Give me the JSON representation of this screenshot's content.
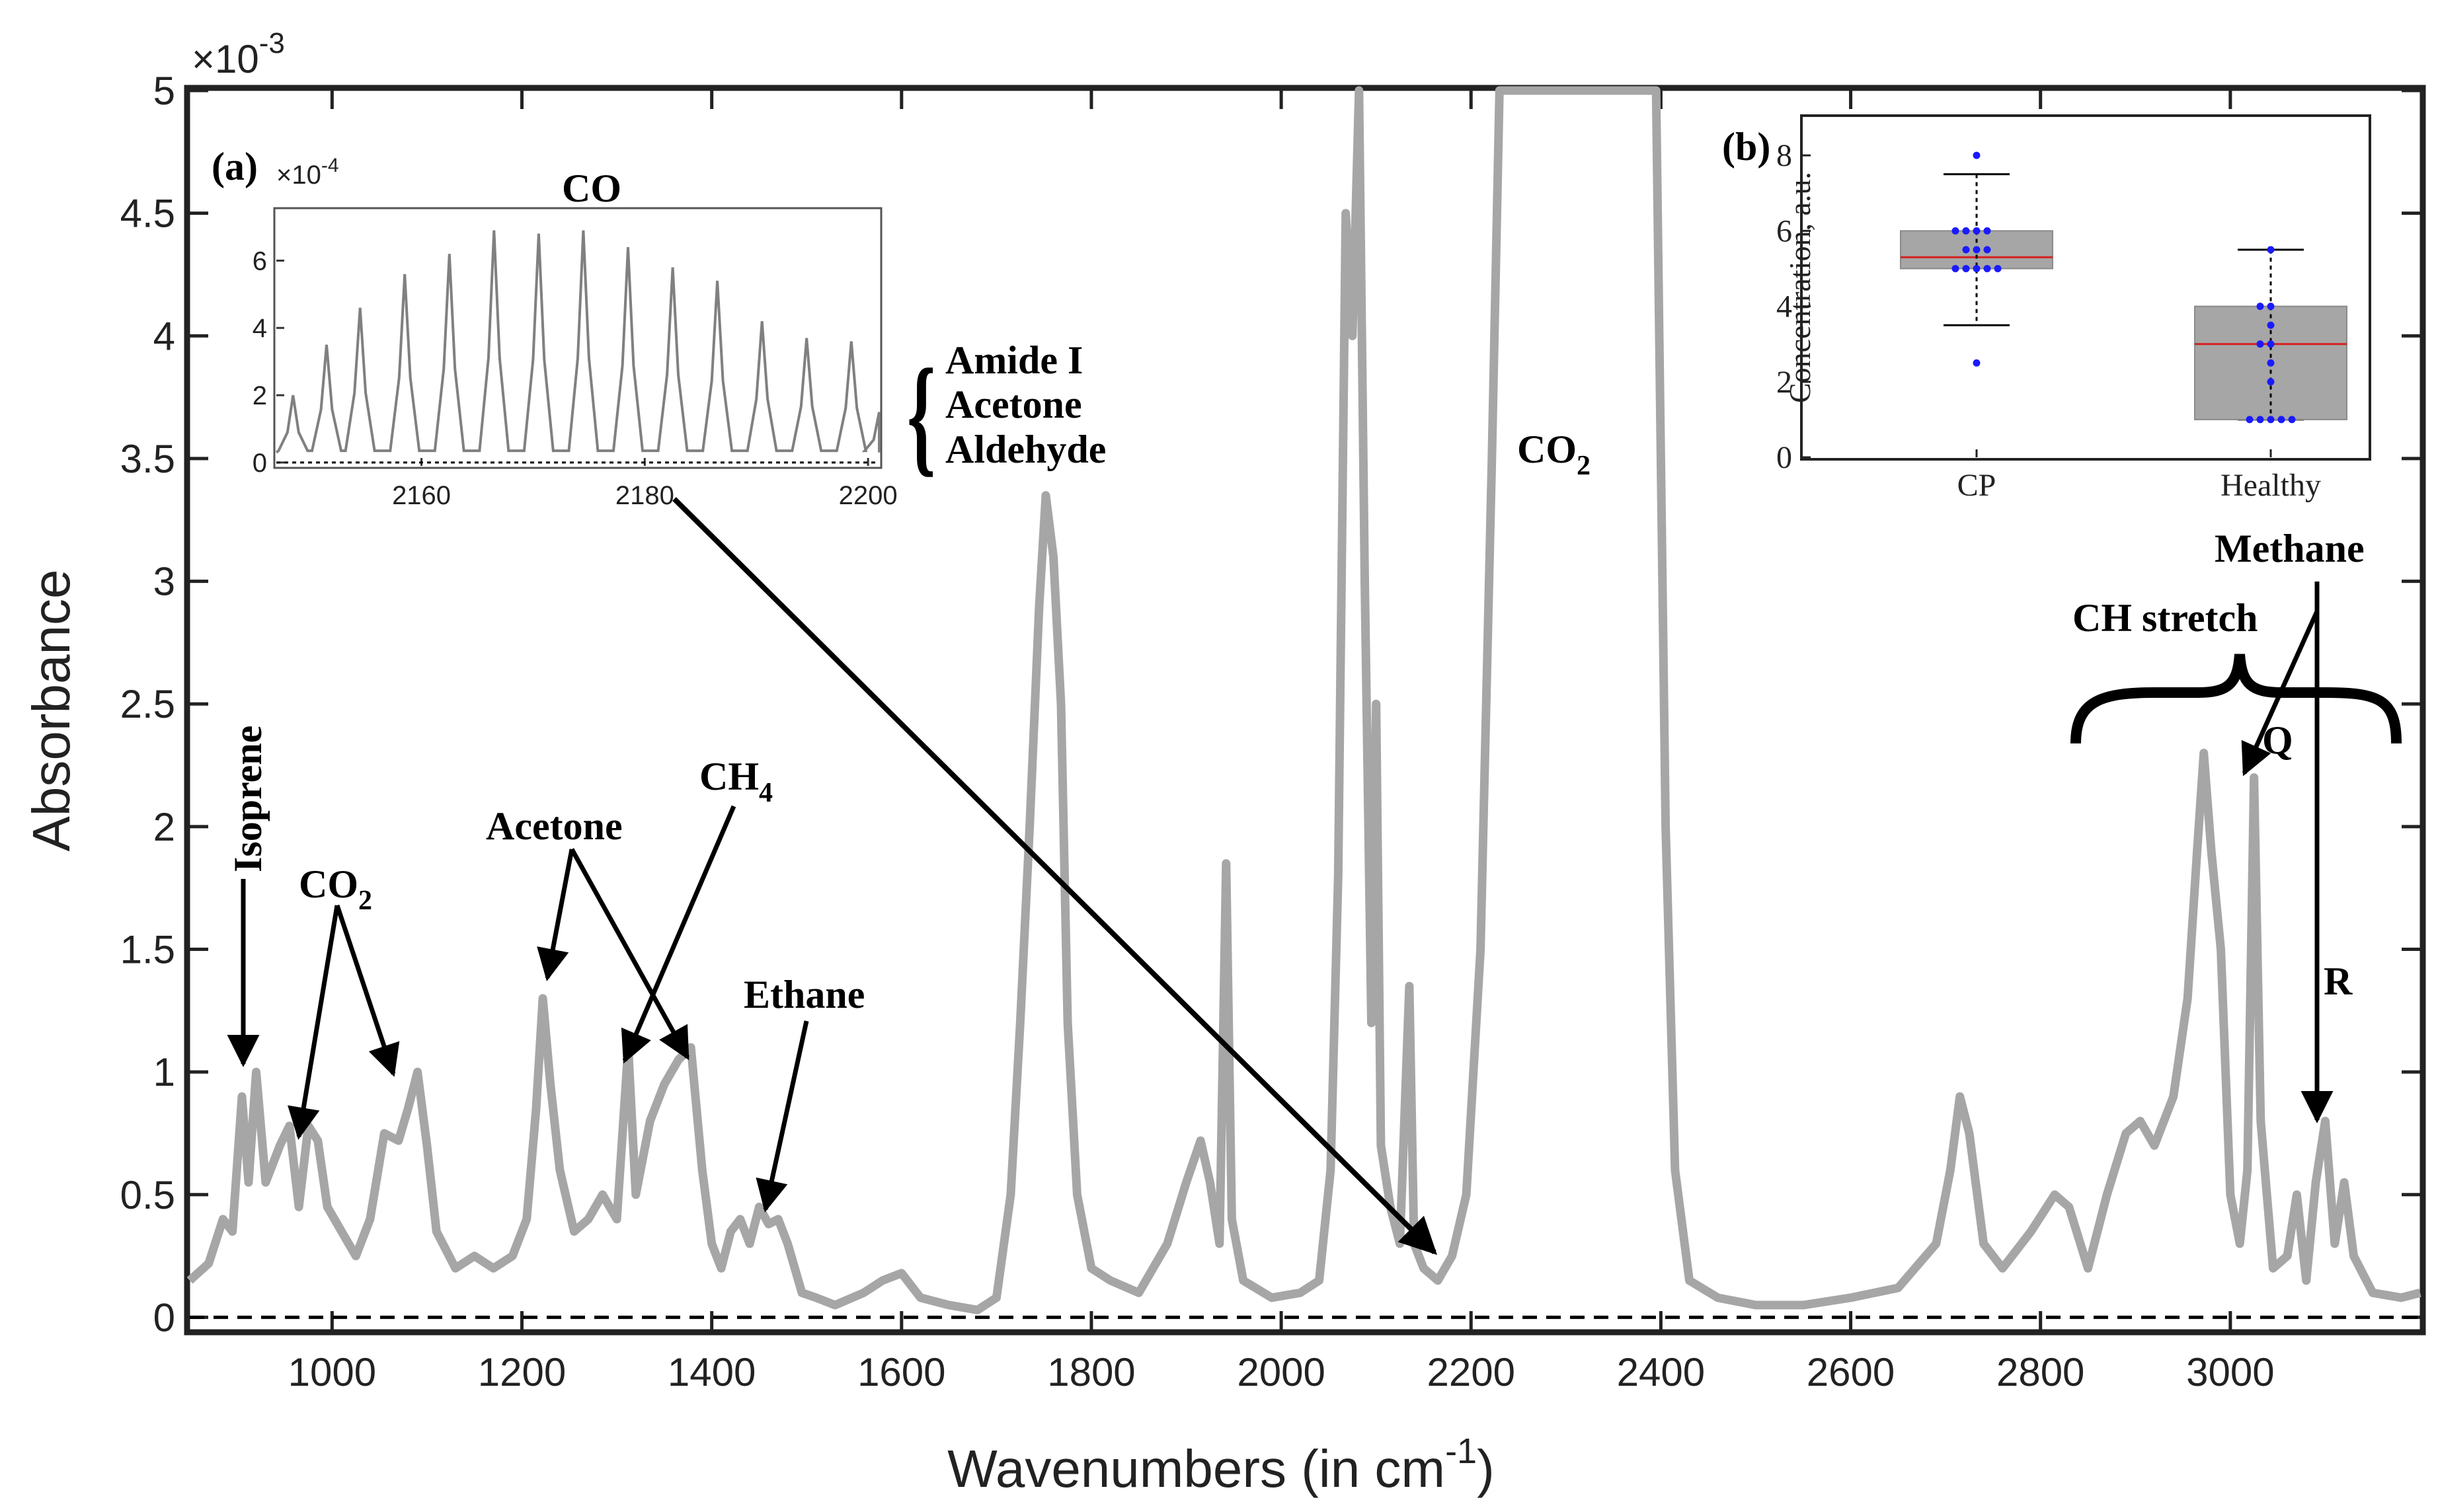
{
  "chart_data": [
    {
      "type": "line",
      "xlabel": "Wavenumbers (in cm",
      "xlabel_sup": "-1",
      "xlabel_close": ")",
      "ylabel": "Absorbance",
      "y_exponent_prefix": "×10",
      "y_exponent": "-3",
      "xlim": [
        850,
        3200
      ],
      "ylim": [
        -0.05,
        5
      ],
      "x_ticks": [
        "1000",
        "1200",
        "1400",
        "1600",
        "1800",
        "2000",
        "2200",
        "2400",
        "2600",
        "2800",
        "3000"
      ],
      "y_ticks": [
        "0",
        "0.5",
        "1",
        "1.5",
        "2",
        "2.5",
        "3",
        "3.5",
        "4",
        "4.5",
        "5"
      ],
      "baseline": 0,
      "series": [
        {
          "name": "spectrum",
          "color": "#a6a6a6",
          "points": [
            [
              850,
              0.15
            ],
            [
              870,
              0.22
            ],
            [
              885,
              0.4
            ],
            [
              895,
              0.35
            ],
            [
              905,
              0.9
            ],
            [
              912,
              0.55
            ],
            [
              920,
              1.0
            ],
            [
              930,
              0.55
            ],
            [
              945,
              0.7
            ],
            [
              955,
              0.78
            ],
            [
              965,
              0.45
            ],
            [
              975,
              0.78
            ],
            [
              985,
              0.72
            ],
            [
              995,
              0.45
            ],
            [
              1010,
              0.35
            ],
            [
              1025,
              0.25
            ],
            [
              1040,
              0.4
            ],
            [
              1055,
              0.75
            ],
            [
              1070,
              0.72
            ],
            [
              1080,
              0.85
            ],
            [
              1090,
              1.0
            ],
            [
              1100,
              0.7
            ],
            [
              1110,
              0.35
            ],
            [
              1130,
              0.2
            ],
            [
              1150,
              0.25
            ],
            [
              1170,
              0.2
            ],
            [
              1190,
              0.25
            ],
            [
              1205,
              0.4
            ],
            [
              1215,
              0.85
            ],
            [
              1222,
              1.3
            ],
            [
              1230,
              0.95
            ],
            [
              1240,
              0.6
            ],
            [
              1255,
              0.35
            ],
            [
              1270,
              0.4
            ],
            [
              1285,
              0.5
            ],
            [
              1300,
              0.4
            ],
            [
              1312,
              1.1
            ],
            [
              1320,
              0.5
            ],
            [
              1335,
              0.8
            ],
            [
              1350,
              0.95
            ],
            [
              1365,
              1.05
            ],
            [
              1378,
              1.1
            ],
            [
              1390,
              0.6
            ],
            [
              1400,
              0.3
            ],
            [
              1410,
              0.2
            ],
            [
              1420,
              0.35
            ],
            [
              1430,
              0.4
            ],
            [
              1440,
              0.3
            ],
            [
              1450,
              0.45
            ],
            [
              1460,
              0.38
            ],
            [
              1470,
              0.4
            ],
            [
              1480,
              0.3
            ],
            [
              1495,
              0.1
            ],
            [
              1510,
              0.08
            ],
            [
              1530,
              0.05
            ],
            [
              1560,
              0.1
            ],
            [
              1580,
              0.15
            ],
            [
              1600,
              0.18
            ],
            [
              1620,
              0.08
            ],
            [
              1650,
              0.05
            ],
            [
              1680,
              0.03
            ],
            [
              1700,
              0.08
            ],
            [
              1715,
              0.5
            ],
            [
              1725,
              1.2
            ],
            [
              1735,
              2.0
            ],
            [
              1745,
              2.9
            ],
            [
              1752,
              3.35
            ],
            [
              1760,
              3.1
            ],
            [
              1768,
              2.5
            ],
            [
              1775,
              1.2
            ],
            [
              1785,
              0.5
            ],
            [
              1800,
              0.2
            ],
            [
              1820,
              0.15
            ],
            [
              1850,
              0.1
            ],
            [
              1880,
              0.3
            ],
            [
              1900,
              0.55
            ],
            [
              1915,
              0.72
            ],
            [
              1925,
              0.55
            ],
            [
              1935,
              0.3
            ],
            [
              1942,
              1.85
            ],
            [
              1948,
              0.4
            ],
            [
              1960,
              0.15
            ],
            [
              1990,
              0.08
            ],
            [
              2020,
              0.1
            ],
            [
              2040,
              0.15
            ],
            [
              2052,
              0.6
            ],
            [
              2060,
              1.8
            ],
            [
              2068,
              4.5
            ],
            [
              2075,
              4.0
            ],
            [
              2082,
              5.2
            ],
            [
              2088,
              3.0
            ],
            [
              2095,
              1.2
            ],
            [
              2100,
              2.5
            ],
            [
              2105,
              0.7
            ],
            [
              2115,
              0.45
            ],
            [
              2125,
              0.3
            ],
            [
              2135,
              1.35
            ],
            [
              2140,
              0.3
            ],
            [
              2150,
              0.2
            ],
            [
              2165,
              0.15
            ],
            [
              2180,
              0.25
            ],
            [
              2195,
              0.5
            ],
            [
              2210,
              1.5
            ],
            [
              2222,
              3.5
            ],
            [
              2230,
              5.2
            ],
            [
              2395,
              5.2
            ],
            [
              2405,
              2.0
            ],
            [
              2415,
              0.6
            ],
            [
              2430,
              0.15
            ],
            [
              2460,
              0.08
            ],
            [
              2500,
              0.05
            ],
            [
              2550,
              0.05
            ],
            [
              2600,
              0.08
            ],
            [
              2650,
              0.12
            ],
            [
              2690,
              0.3
            ],
            [
              2705,
              0.6
            ],
            [
              2715,
              0.9
            ],
            [
              2725,
              0.75
            ],
            [
              2740,
              0.3
            ],
            [
              2760,
              0.2
            ],
            [
              2790,
              0.35
            ],
            [
              2815,
              0.5
            ],
            [
              2830,
              0.45
            ],
            [
              2850,
              0.2
            ],
            [
              2870,
              0.5
            ],
            [
              2890,
              0.75
            ],
            [
              2905,
              0.8
            ],
            [
              2920,
              0.7
            ],
            [
              2940,
              0.9
            ],
            [
              2955,
              1.3
            ],
            [
              2965,
              1.9
            ],
            [
              2972,
              2.3
            ],
            [
              2980,
              1.9
            ],
            [
              2990,
              1.5
            ],
            [
              3000,
              0.5
            ],
            [
              3010,
              0.3
            ],
            [
              3018,
              0.6
            ],
            [
              3025,
              2.2
            ],
            [
              3032,
              0.8
            ],
            [
              3045,
              0.2
            ],
            [
              3060,
              0.25
            ],
            [
              3070,
              0.5
            ],
            [
              3080,
              0.15
            ],
            [
              3090,
              0.55
            ],
            [
              3100,
              0.8
            ],
            [
              3110,
              0.3
            ],
            [
              3120,
              0.55
            ],
            [
              3130,
              0.25
            ],
            [
              3150,
              0.1
            ],
            [
              3180,
              0.08
            ],
            [
              3200,
              0.1
            ]
          ]
        }
      ]
    },
    {
      "type": "line",
      "panel_label": "(a)",
      "title": "CO",
      "xlim": [
        2147,
        2201
      ],
      "ylim": [
        -0.1,
        7.5
      ],
      "x_ticks": [
        "2160",
        "2180",
        "2200"
      ],
      "y_ticks": [
        "0",
        "2",
        "4",
        "6"
      ],
      "y_exponent_prefix": "×10",
      "y_exponent": "-4",
      "peaks": [
        [
          2148.5,
          2.0
        ],
        [
          2151.5,
          3.5
        ],
        [
          2154.5,
          4.6
        ],
        [
          2158.5,
          5.6
        ],
        [
          2162.5,
          6.2
        ],
        [
          2166.5,
          6.9
        ],
        [
          2170.5,
          6.8
        ],
        [
          2174.5,
          6.9
        ],
        [
          2178.5,
          6.4
        ],
        [
          2182.5,
          5.8
        ],
        [
          2186.5,
          5.4
        ],
        [
          2190.5,
          4.2
        ],
        [
          2194.5,
          3.7
        ],
        [
          2198.5,
          3.6
        ],
        [
          2201,
          1.5
        ]
      ]
    },
    {
      "type": "box",
      "panel_label": "(b)",
      "ylabel": "Concentration, a.u.",
      "categories": [
        "CP",
        "Healthy"
      ],
      "ylim": [
        0,
        9
      ],
      "y_ticks": [
        "0",
        "2",
        "4",
        "6",
        "8"
      ],
      "boxes": [
        {
          "name": "CP",
          "q1": 5.0,
          "median": 5.3,
          "q3": 6.0,
          "whisker_low": 3.5,
          "whisker_high": 7.5,
          "points": [
            8.0,
            6.0,
            6.0,
            6.0,
            6.0,
            5.5,
            5.5,
            5.5,
            5.0,
            5.0,
            5.0,
            5.0,
            5.0,
            2.5
          ]
        },
        {
          "name": "Healthy",
          "q1": 1.0,
          "median": 3.0,
          "q3": 4.0,
          "whisker_low": 1.0,
          "whisker_high": 5.5,
          "points": [
            5.5,
            4.0,
            4.0,
            3.5,
            3.0,
            3.0,
            2.5,
            2.0,
            1.0,
            1.0,
            1.0,
            1.0,
            1.0
          ]
        }
      ]
    }
  ],
  "annotations": {
    "isoprene": "Isoprene",
    "co2_left": "CO",
    "co2_left_sub": "2",
    "acetone": "Acetone",
    "ch4": "CH",
    "ch4_sub": "4",
    "ethane": "Ethane",
    "co2_main": "CO",
    "co2_main_sub": "2",
    "ch_stretch": "CH stretch",
    "methane": "Methane",
    "q_branch": "Q",
    "r_branch": "R",
    "brace_items": [
      "Amide I",
      "Acetone",
      "Aldehyde"
    ]
  }
}
